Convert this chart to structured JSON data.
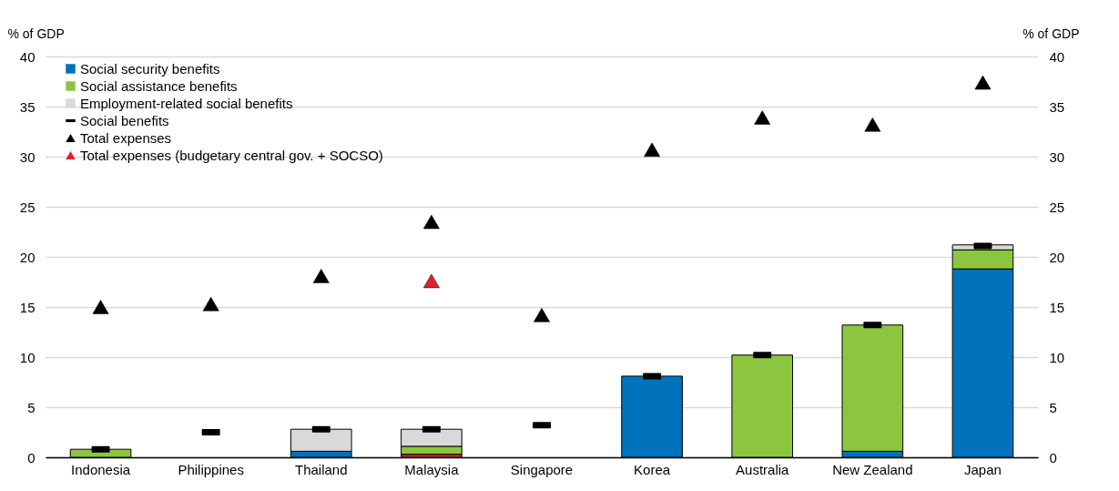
{
  "chart_data": {
    "type": "bar",
    "stacked": true,
    "categories": [
      "Indonesia",
      "Philippines",
      "Thailand",
      "Malaysia",
      "Singapore",
      "Korea",
      "Australia",
      "New Zealand",
      "Japan"
    ],
    "ylabel": "% of GDP",
    "y2label": "% of GDP",
    "ylim": [
      0,
      40
    ],
    "yticks": [
      0,
      5,
      10,
      15,
      20,
      25,
      30,
      35,
      40
    ],
    "y2lim": [
      0,
      40
    ],
    "y2ticks": [
      0,
      5,
      10,
      15,
      20,
      25,
      30,
      35,
      40
    ],
    "grid": "y",
    "legend": "top left",
    "series": [
      {
        "color": "#d7262b",
        "values": [
          null,
          null,
          null,
          0.3,
          null,
          null,
          null,
          null,
          null
        ]
      },
      {
        "name": "Social security benefits",
        "color": "#0072bc",
        "values": [
          null,
          null,
          0.6,
          null,
          null,
          8.1,
          null,
          0.6,
          18.8
        ]
      },
      {
        "name": "Social assistance benefits",
        "color": "#8cc63f",
        "values": [
          0.8,
          null,
          null,
          0.8,
          null,
          null,
          10.2,
          12.6,
          1.9
        ]
      },
      {
        "name": "Employment-related social benefits",
        "color": "#d9d9d9",
        "values": [
          null,
          null,
          2.2,
          1.7,
          null,
          null,
          null,
          null,
          0.5
        ]
      },
      {
        "name": "Social benefits",
        "type": "scatter",
        "color": "#000000",
        "values": [
          0.8,
          2.5,
          2.8,
          2.8,
          3.2,
          8.1,
          10.2,
          13.2,
          21.1
        ]
      },
      {
        "name": "Total expenses",
        "type": "scatter",
        "marker": "triangle",
        "color": "#000000",
        "values": [
          15.0,
          15.3,
          18.1,
          23.5,
          14.2,
          30.7,
          33.9,
          33.2,
          37.4
        ]
      },
      {
        "name": "Total expenses (budgetary central gov. + SOCSO)",
        "type": "scatter",
        "marker": "triangle",
        "color": "#e0202a",
        "values": [
          null,
          null,
          null,
          17.6,
          null,
          null,
          null,
          null,
          null
        ]
      }
    ]
  }
}
